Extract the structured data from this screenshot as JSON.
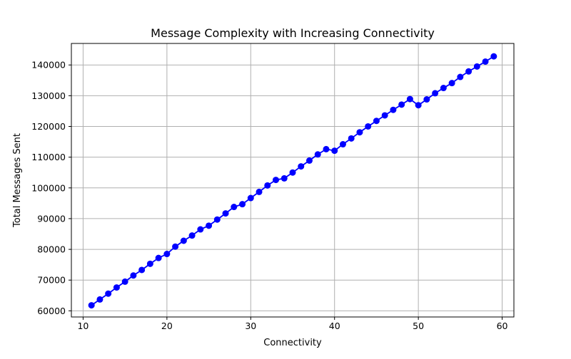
{
  "chart_data": {
    "type": "line",
    "title": "Message Complexity with Increasing Connectivity",
    "xlabel": "Connectivity",
    "ylabel": "Total Messages Sent",
    "xlim": [
      8.6,
      61.4
    ],
    "ylim": [
      58000,
      147000
    ],
    "xticks": [
      10,
      20,
      30,
      40,
      50,
      60
    ],
    "yticks": [
      60000,
      70000,
      80000,
      90000,
      100000,
      110000,
      120000,
      130000,
      140000
    ],
    "grid": true,
    "legend": "none",
    "series": [
      {
        "color": "#0000ff",
        "marker": "circle",
        "x": [
          11,
          12,
          13,
          14,
          15,
          16,
          17,
          18,
          19,
          20,
          21,
          22,
          23,
          24,
          25,
          26,
          27,
          28,
          29,
          30,
          31,
          32,
          33,
          34,
          35,
          36,
          37,
          38,
          39,
          40,
          41,
          42,
          43,
          44,
          45,
          46,
          47,
          48,
          49,
          50,
          51,
          52,
          53,
          54,
          55,
          56,
          57,
          58,
          59
        ],
        "y": [
          61800,
          63700,
          65600,
          67600,
          69500,
          71500,
          73300,
          75300,
          77200,
          78500,
          80900,
          82800,
          84500,
          86500,
          87700,
          89700,
          91700,
          93800,
          94700,
          96700,
          98700,
          100800,
          102600,
          103100,
          105000,
          107000,
          108900,
          110900,
          112600,
          112100,
          114200,
          116100,
          118100,
          120000,
          121800,
          123600,
          125400,
          127100,
          128900,
          126900,
          128800,
          130800,
          132500,
          134100,
          136100,
          137900,
          139500,
          141100,
          142800
        ]
      }
    ]
  }
}
